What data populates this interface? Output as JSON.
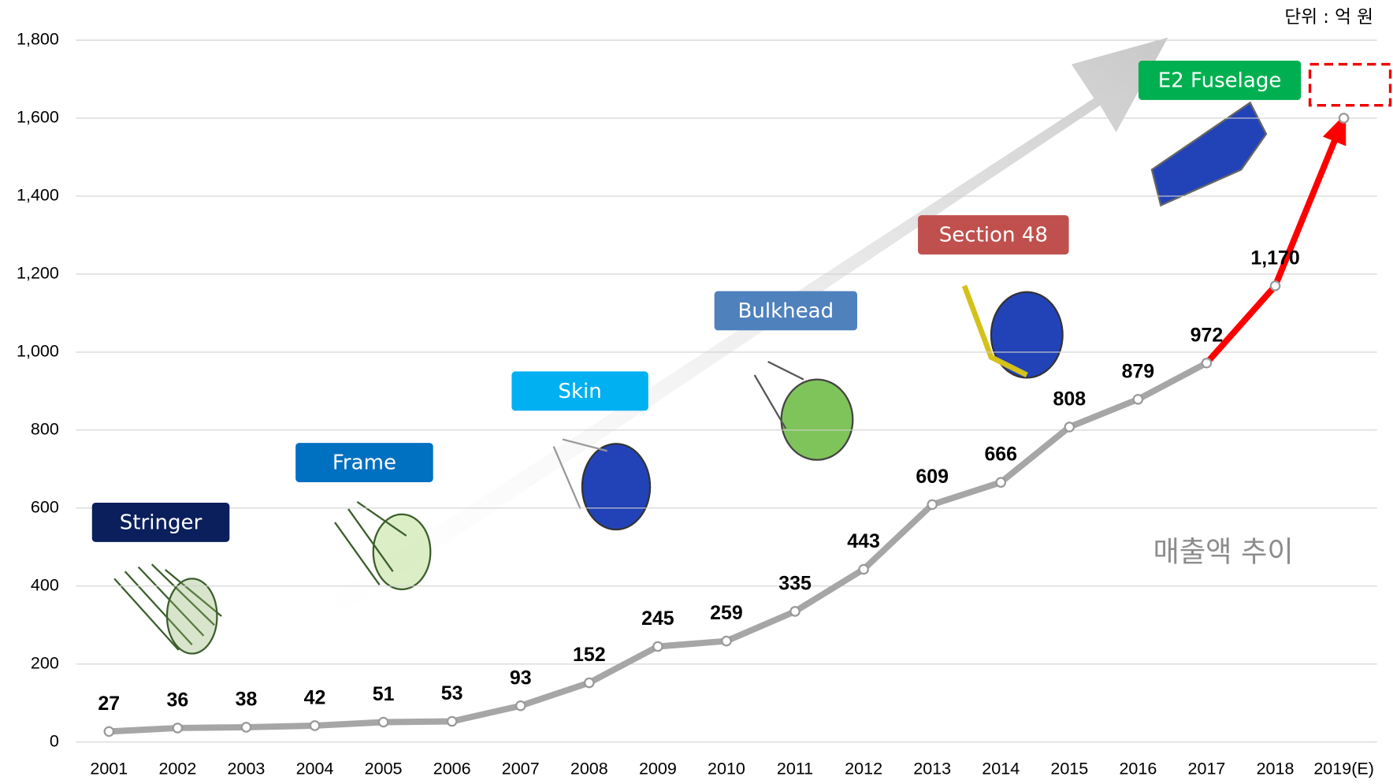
{
  "chart_data": {
    "type": "line",
    "unit_note": "단위 : 억 원",
    "annotation": "매출액 추이",
    "categories": [
      "2001",
      "2002",
      "2003",
      "2004",
      "2005",
      "2006",
      "2007",
      "2008",
      "2009",
      "2010",
      "2011",
      "2012",
      "2013",
      "2014",
      "2015",
      "2016",
      "2017",
      "2018",
      "2019(E)"
    ],
    "series": [
      {
        "color": "#a6a6a6",
        "highlight_color": "#ff0000",
        "highlight_from": 16,
        "values": [
          27,
          36,
          38,
          42,
          51,
          53,
          93,
          152,
          245,
          259,
          335,
          443,
          609,
          666,
          808,
          879,
          972,
          1170,
          1600
        ],
        "value_labels": [
          "27",
          "36",
          "38",
          "42",
          "51",
          "53",
          "93",
          "152",
          "245",
          "259",
          "335",
          "443",
          "609",
          "666",
          "808",
          "879",
          "972",
          "1,170",
          null
        ]
      }
    ],
    "ylim": [
      0,
      1800
    ],
    "yticks": [
      0,
      200,
      400,
      600,
      800,
      {
        "value": 1000,
        "label": "1,000"
      },
      {
        "value": 1200,
        "label": "1,200"
      },
      {
        "value": 1400,
        "label": "1,400"
      },
      {
        "value": 1600,
        "label": "1,600"
      },
      {
        "value": 1800,
        "label": "1,800"
      }
    ],
    "grid": true,
    "stages": [
      {
        "label": "Stringer",
        "color": "#0b1f5c"
      },
      {
        "label": "Frame",
        "color": "#0070c0"
      },
      {
        "label": "Skin",
        "color": "#00b0f0"
      },
      {
        "label": "Bulkhead",
        "color": "#4f81bd"
      },
      {
        "label": "Section 48",
        "color": "#c0504d"
      },
      {
        "label": "E2 Fuselage",
        "color": "#00b050"
      }
    ]
  }
}
